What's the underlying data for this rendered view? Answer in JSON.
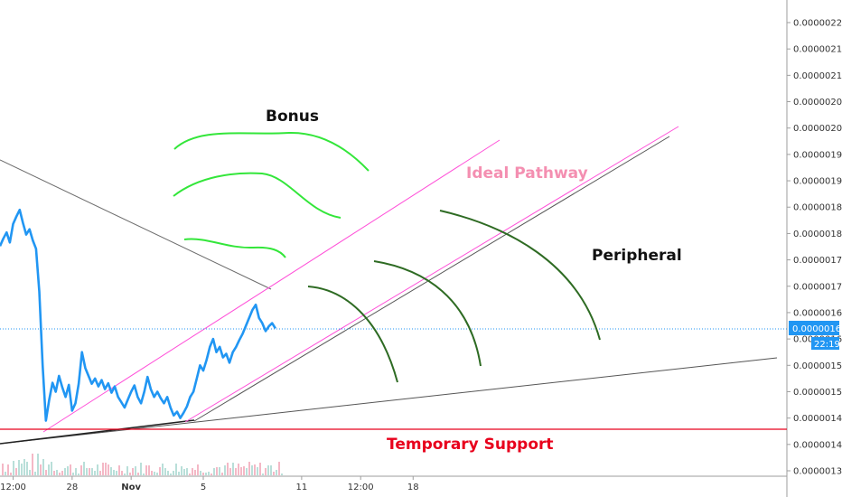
{
  "chart_data": {
    "type": "line",
    "grid": false,
    "legend": "none",
    "y_axis": {
      "side": "right",
      "range": [
        1.34e-06,
        2.23e-06
      ],
      "ticks": [
        "0.00000220",
        "0.00000215",
        "0.00000210",
        "0.00000205",
        "0.00000200",
        "0.00000195",
        "0.00000190",
        "0.00000185",
        "0.00000180",
        "0.00000175",
        "0.00000170",
        "0.00000165",
        "0.00000160",
        "0.00000155",
        "0.00000150",
        "0.00000145",
        "0.00000140",
        "0.00000135"
      ]
    },
    "x_axis": {
      "range": [
        0,
        120
      ],
      "ticks": [
        {
          "label": "12:00",
          "x": 2
        },
        {
          "label": "28",
          "x": 11
        },
        {
          "label": "Nov",
          "x": 20
        },
        {
          "label": "5",
          "x": 31
        },
        {
          "label": "11",
          "x": 46
        },
        {
          "label": "12:00",
          "x": 55
        },
        {
          "label": "18",
          "x": 63
        }
      ]
    },
    "current_price": {
      "value": "0.00000162",
      "countdown": "22:19",
      "color": "#2196f3"
    },
    "series": [
      {
        "color": "#2196f3",
        "points": [
          [
            0.0,
            1.776
          ],
          [
            0.5,
            1.79
          ],
          [
            1.0,
            1.802
          ],
          [
            1.5,
            1.783
          ],
          [
            2.0,
            1.818
          ],
          [
            2.5,
            1.832
          ],
          [
            3.0,
            1.845
          ],
          [
            3.5,
            1.82
          ],
          [
            4.0,
            1.798
          ],
          [
            4.5,
            1.808
          ],
          [
            5.0,
            1.787
          ],
          [
            5.5,
            1.771
          ],
          [
            6.0,
            1.69
          ],
          [
            6.5,
            1.55
          ],
          [
            7.0,
            1.445
          ],
          [
            7.5,
            1.484
          ],
          [
            8.0,
            1.517
          ],
          [
            8.5,
            1.5
          ],
          [
            9.0,
            1.53
          ],
          [
            9.5,
            1.508
          ],
          [
            10.0,
            1.49
          ],
          [
            10.5,
            1.513
          ],
          [
            11.0,
            1.464
          ],
          [
            11.5,
            1.478
          ],
          [
            12.0,
            1.515
          ],
          [
            12.5,
            1.575
          ],
          [
            13.0,
            1.545
          ],
          [
            13.5,
            1.53
          ],
          [
            14.0,
            1.515
          ],
          [
            14.5,
            1.525
          ],
          [
            15.0,
            1.51
          ],
          [
            15.5,
            1.522
          ],
          [
            16.0,
            1.505
          ],
          [
            16.5,
            1.516
          ],
          [
            17.0,
            1.498
          ],
          [
            17.5,
            1.51
          ],
          [
            18.0,
            1.49
          ],
          [
            18.5,
            1.48
          ],
          [
            19.0,
            1.47
          ],
          [
            19.5,
            1.485
          ],
          [
            20.0,
            1.5
          ],
          [
            20.5,
            1.512
          ],
          [
            21.0,
            1.49
          ],
          [
            21.5,
            1.478
          ],
          [
            22.0,
            1.5
          ],
          [
            22.5,
            1.528
          ],
          [
            23.0,
            1.505
          ],
          [
            23.5,
            1.49
          ],
          [
            24.0,
            1.5
          ],
          [
            24.5,
            1.488
          ],
          [
            25.0,
            1.478
          ],
          [
            25.5,
            1.49
          ],
          [
            26.0,
            1.47
          ],
          [
            26.5,
            1.455
          ],
          [
            27.0,
            1.462
          ],
          [
            27.5,
            1.45
          ],
          [
            28.0,
            1.46
          ],
          [
            28.5,
            1.472
          ],
          [
            29.0,
            1.49
          ],
          [
            29.5,
            1.5
          ],
          [
            30.0,
            1.525
          ],
          [
            30.5,
            1.55
          ],
          [
            31.0,
            1.54
          ],
          [
            31.5,
            1.56
          ],
          [
            32.0,
            1.585
          ],
          [
            32.5,
            1.6
          ],
          [
            33.0,
            1.575
          ],
          [
            33.5,
            1.585
          ],
          [
            34.0,
            1.565
          ],
          [
            34.5,
            1.572
          ],
          [
            35.0,
            1.555
          ],
          [
            35.5,
            1.575
          ],
          [
            36.0,
            1.585
          ],
          [
            36.5,
            1.598
          ],
          [
            37.0,
            1.61
          ],
          [
            37.5,
            1.625
          ],
          [
            38.0,
            1.64
          ],
          [
            38.5,
            1.655
          ],
          [
            39.0,
            1.665
          ],
          [
            39.5,
            1.64
          ],
          [
            40.0,
            1.63
          ],
          [
            40.5,
            1.615
          ],
          [
            41.0,
            1.624
          ],
          [
            41.5,
            1.63
          ],
          [
            42.0,
            1.62
          ]
        ]
      }
    ],
    "annotations": [
      {
        "text": "Bonus",
        "color": "#111111"
      },
      {
        "text": "Ideal Pathway",
        "color": "#f48fb1"
      },
      {
        "text": "Peripheral",
        "color": "#111111"
      },
      {
        "text": "Temporary Support",
        "color": "#e8001c"
      }
    ]
  }
}
